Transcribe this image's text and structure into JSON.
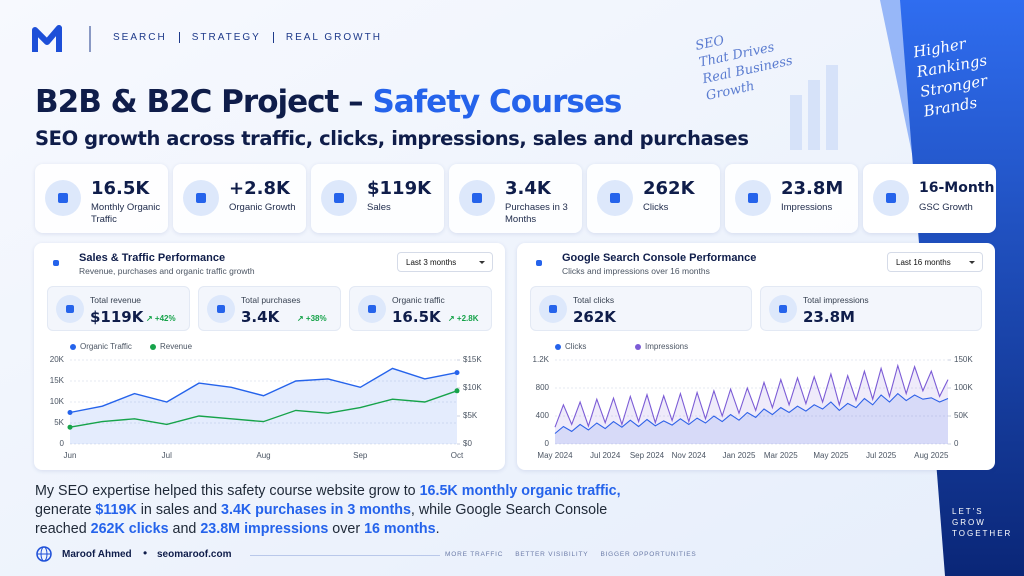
{
  "header": {
    "nav": [
      "SEARCH",
      "STRATEGY",
      "REAL GROWTH"
    ],
    "title_main": "B2B & B2C Project –",
    "title_accent": "Safety Courses",
    "subtitle": "SEO growth across traffic, clicks, impressions, sales and purchases",
    "note_left": [
      "SEO",
      "That Drives",
      "Real Business",
      "Growth"
    ],
    "note_right": [
      "Higher",
      "Rankings",
      "Stronger",
      "Brands"
    ]
  },
  "stats": [
    {
      "value": "16.5K",
      "label": "Monthly Organic Traffic"
    },
    {
      "value": "+2.8K",
      "label": "Organic Growth"
    },
    {
      "value": "$119K",
      "label": "Sales"
    },
    {
      "value": "3.4K",
      "label": "Purchases in 3 Months"
    },
    {
      "value": "262K",
      "label": "Clicks"
    },
    {
      "value": "23.8M",
      "label": "Impressions"
    },
    {
      "value": "16-Month",
      "label": "GSC Growth"
    }
  ],
  "panels": [
    {
      "title": "Sales & Traffic Performance",
      "subtitle": "Revenue, purchases and organic traffic growth",
      "range": "Last 3 months",
      "cards": [
        {
          "label": "Total revenue",
          "value": "$119K",
          "change": "↗ +42%"
        },
        {
          "label": "Total purchases",
          "value": "3.4K",
          "change": "↗ +38%"
        },
        {
          "label": "Organic traffic",
          "value": "16.5K",
          "change": "↗ +2.8K"
        }
      ]
    },
    {
      "title": "Google Search Console Performance",
      "subtitle": "Clicks and impressions over 16 months",
      "range": "Last 16 months",
      "cards": [
        {
          "label": "Total clicks",
          "value": "262K"
        },
        {
          "label": "Total impressions",
          "value": "23.8M"
        }
      ]
    }
  ],
  "chart_data": [
    {
      "type": "line",
      "categories": [
        "Jun",
        null,
        null,
        "Jul",
        null,
        null,
        "Aug",
        null,
        null,
        "Sep",
        null,
        null,
        "Oct"
      ],
      "series": [
        {
          "name": "Organic Traffic",
          "color": "#2563eb",
          "area": true,
          "values": [
            7500,
            9000,
            12000,
            10000,
            14500,
            13500,
            11500,
            15000,
            15500,
            13500,
            18000,
            15500,
            17000
          ]
        },
        {
          "name": "Revenue",
          "color": "#16a34a",
          "area": false,
          "axis": "y2",
          "values": [
            3000,
            4000,
            4500,
            3500,
            5000,
            4500,
            4000,
            6000,
            5500,
            6500,
            8000,
            7500,
            9500
          ]
        }
      ],
      "ylim": [
        0,
        20000
      ],
      "yticks": [
        0,
        {
          "value": 5000,
          "label": "5K"
        },
        {
          "value": 10000,
          "label": "10K"
        },
        {
          "value": 15000,
          "label": "15K"
        },
        {
          "value": 20000,
          "label": "20K"
        }
      ],
      "y2lim": [
        0,
        15000
      ],
      "y2ticks": [
        {
          "value": 0,
          "label": "$0"
        },
        {
          "value": 5000,
          "label": "$5K"
        },
        {
          "value": 10000,
          "label": "$10K"
        },
        {
          "value": 15000,
          "label": "$15K"
        }
      ],
      "grid": true
    },
    {
      "type": "line",
      "categories": [
        "May 2024",
        null,
        null,
        null,
        null,
        null,
        "Jul 2024",
        null,
        null,
        null,
        null,
        "Sep 2024",
        null,
        null,
        null,
        null,
        "Nov 2024",
        null,
        null,
        null,
        null,
        null,
        "Jan 2025",
        null,
        null,
        null,
        null,
        "Mar 2025",
        null,
        null,
        null,
        null,
        null,
        "May 2025",
        null,
        null,
        null,
        null,
        null,
        "Jul 2025",
        null,
        null,
        null,
        null,
        null,
        "Aug 2025",
        null,
        null
      ],
      "series": [
        {
          "name": "Clicks",
          "color": "#2563eb",
          "area": true,
          "values": [
            150,
            250,
            180,
            280,
            200,
            300,
            220,
            320,
            240,
            340,
            250,
            350,
            260,
            330,
            270,
            360,
            280,
            370,
            300,
            400,
            320,
            420,
            340,
            450,
            380,
            500,
            420,
            520,
            450,
            540,
            470,
            560,
            500,
            600,
            480,
            580,
            520,
            650,
            560,
            700,
            600,
            720,
            620,
            700,
            640,
            660,
            600,
            650
          ]
        },
        {
          "name": "Impressions",
          "color": "#7c5cd6",
          "area": true,
          "axis": "y2",
          "values": [
            30000,
            70000,
            35000,
            75000,
            32000,
            80000,
            38000,
            82000,
            35000,
            85000,
            40000,
            88000,
            38000,
            86000,
            42000,
            90000,
            40000,
            92000,
            45000,
            95000,
            50000,
            98000,
            55000,
            100000,
            60000,
            110000,
            65000,
            115000,
            70000,
            118000,
            72000,
            120000,
            75000,
            125000,
            70000,
            122000,
            78000,
            130000,
            80000,
            135000,
            85000,
            140000,
            90000,
            138000,
            95000,
            130000,
            85000,
            115000
          ]
        }
      ],
      "ylim": [
        0,
        1200
      ],
      "yticks": [
        0,
        400,
        800,
        {
          "value": 1200,
          "label": "1.2K"
        }
      ],
      "y2lim": [
        0,
        150000
      ],
      "y2ticks": [
        0,
        {
          "value": 50000,
          "label": "50K"
        },
        {
          "value": 100000,
          "label": "100K"
        },
        {
          "value": 150000,
          "label": "150K"
        }
      ],
      "grid": true
    }
  ],
  "summary": [
    {
      "text": "My SEO expertise helped this safety course website grow to ",
      "em": false
    },
    {
      "text": "16.5K monthly organic traffic,",
      "em": true
    },
    {
      "text": " generate ",
      "em": false
    },
    {
      "text": "$119K",
      "em": true
    },
    {
      "text": " in sales and ",
      "em": false
    },
    {
      "text": "3.4K purchases in 3 months",
      "em": true
    },
    {
      "text": ", while Google Search Console reached ",
      "em": false
    },
    {
      "text": "262K clicks",
      "em": true
    },
    {
      "text": " and ",
      "em": false
    },
    {
      "text": "23.8M impressions",
      "em": true
    },
    {
      "text": " over ",
      "em": false
    },
    {
      "text": "16 months",
      "em": true
    },
    {
      "text": ".",
      "em": false
    }
  ],
  "footer": {
    "name": "Maroof Ahmed",
    "site": "seomaroof.com",
    "tags": [
      "MORE TRAFFIC",
      "BETTER VISIBILITY",
      "BIGGER OPPORTUNITIES"
    ],
    "cta": [
      "LET'S",
      "GROW",
      "TOGETHER"
    ]
  }
}
